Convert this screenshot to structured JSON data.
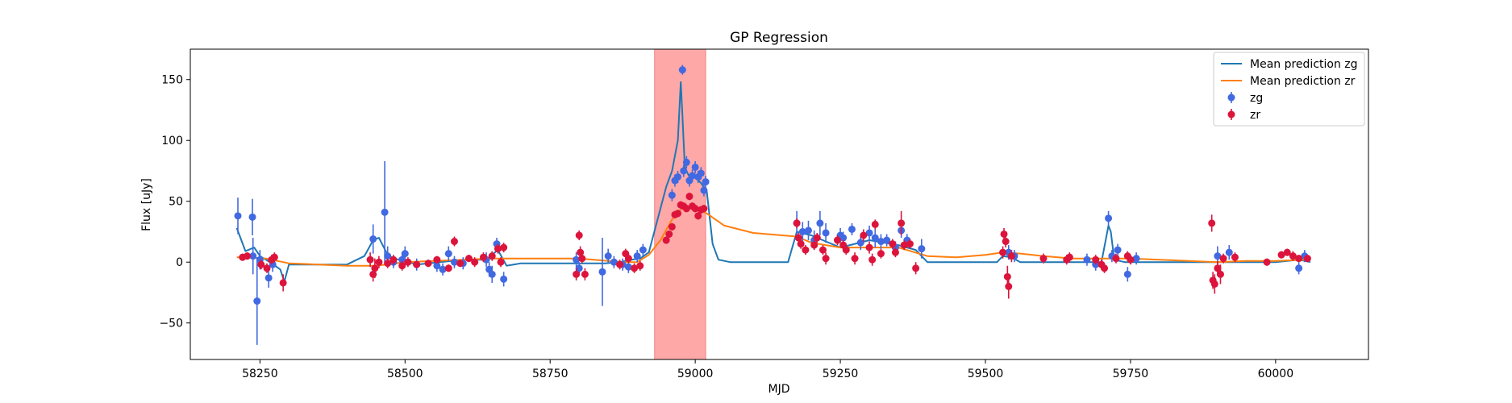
{
  "chart_data": {
    "type": "scatter",
    "title": "GP Regression",
    "xlabel": "MJD",
    "ylabel": "Flux [uJy]",
    "xlim": [
      58130,
      60160
    ],
    "ylim": [
      -80,
      175
    ],
    "xticks": [
      58250,
      58500,
      58750,
      59000,
      59250,
      59500,
      59750,
      60000
    ],
    "yticks": [
      -50,
      0,
      50,
      100,
      150
    ],
    "grid": false,
    "legend_position": "top-right",
    "highlight_band": {
      "x_start": 58930,
      "x_end": 59018,
      "color": "#ff9999"
    },
    "colors": {
      "zg_line": "#1f77b4",
      "zr_line": "#ff7f0e",
      "zg_points": "#4169e1",
      "zr_points": "#dc143c"
    },
    "legend": [
      {
        "label": "Mean prediction zg",
        "kind": "line",
        "color": "#1f77b4"
      },
      {
        "label": "Mean prediction zr",
        "kind": "line",
        "color": "#ff7f0e"
      },
      {
        "label": "zg",
        "kind": "errorbar",
        "color": "#4169e1"
      },
      {
        "label": "zr",
        "kind": "errorbar",
        "color": "#dc143c"
      }
    ],
    "series": [
      {
        "name": "Mean prediction zg",
        "kind": "line",
        "color": "#1f77b4",
        "x": [
          58210,
          58225,
          58240,
          58250,
          58260,
          58270,
          58285,
          58292,
          58300,
          58320,
          58400,
          58430,
          58445,
          58455,
          58470,
          58480,
          58500,
          58520,
          58560,
          58600,
          58640,
          58660,
          58675,
          58700,
          58760,
          58800,
          58830,
          58845,
          58870,
          58890,
          58905,
          58920,
          58935,
          58950,
          58960,
          58970,
          58975,
          58978,
          58982,
          58990,
          59000,
          59010,
          59020,
          59030,
          59040,
          59060,
          59100,
          59160,
          59175,
          59200,
          59250,
          59300,
          59350,
          59380,
          59400,
          59450,
          59520,
          59530,
          59545,
          59560,
          59600,
          59650,
          59700,
          59712,
          59716,
          59722,
          59740,
          59770,
          59800,
          59900,
          59950,
          60000,
          60040,
          60060
        ],
        "y": [
          28,
          9,
          12,
          5,
          2,
          -1,
          -6,
          -16,
          -2,
          -2,
          -2,
          5,
          18,
          20,
          6,
          3,
          1,
          -2,
          0,
          2,
          2,
          10,
          -3,
          -1,
          -1,
          -1,
          -1,
          -1,
          0,
          2,
          3,
          8,
          35,
          62,
          75,
          100,
          148,
          120,
          78,
          70,
          70,
          65,
          58,
          15,
          2,
          0,
          0,
          0,
          25,
          22,
          12,
          18,
          14,
          10,
          0,
          0,
          0,
          5,
          4,
          0,
          0,
          0,
          0,
          30,
          25,
          2,
          0,
          0,
          0,
          0,
          0,
          0,
          2,
          0
        ]
      },
      {
        "name": "Mean prediction zr",
        "kind": "line",
        "color": "#ff7f0e",
        "x": [
          58210,
          58230,
          58260,
          58280,
          58300,
          58350,
          58400,
          58450,
          58500,
          58550,
          58600,
          58650,
          58700,
          58750,
          58800,
          58850,
          58880,
          58900,
          58920,
          58940,
          58960,
          58980,
          59000,
          59020,
          59050,
          59100,
          59150,
          59175,
          59200,
          59250,
          59300,
          59350,
          59400,
          59450,
          59500,
          59530,
          59560,
          59600,
          59650,
          59700,
          59750,
          59800,
          59850,
          59900,
          59950,
          60000,
          60050
        ],
        "y": [
          4,
          4,
          3,
          1,
          -1,
          -2,
          -3,
          -3,
          0,
          1,
          2,
          3,
          3,
          3,
          3,
          1,
          0,
          0,
          6,
          18,
          35,
          46,
          44,
          40,
          30,
          24,
          22,
          21,
          16,
          12,
          12,
          12,
          5,
          4,
          6,
          8,
          7,
          5,
          3,
          3,
          3,
          2,
          1,
          0,
          1,
          1,
          2
        ]
      },
      {
        "name": "zg",
        "kind": "errorbar",
        "color": "#4169e1",
        "points": [
          [
            58212,
            38,
            15
          ],
          [
            58237,
            37,
            15
          ],
          [
            58245,
            -32,
            36
          ],
          [
            58238,
            5,
            15
          ],
          [
            58250,
            2,
            8
          ],
          [
            58265,
            -13,
            8
          ],
          [
            58272,
            -2,
            6
          ],
          [
            58445,
            19,
            12
          ],
          [
            58465,
            41,
            42
          ],
          [
            58470,
            5,
            8
          ],
          [
            58480,
            0,
            5
          ],
          [
            58495,
            2,
            6
          ],
          [
            58500,
            7,
            6
          ],
          [
            58520,
            -2,
            5
          ],
          [
            58555,
            -3,
            5
          ],
          [
            58565,
            -6,
            5
          ],
          [
            58575,
            7,
            6
          ],
          [
            58585,
            0,
            5
          ],
          [
            58600,
            -1,
            5
          ],
          [
            58640,
            2,
            6
          ],
          [
            58645,
            -6,
            6
          ],
          [
            58650,
            -10,
            7
          ],
          [
            58658,
            15,
            5
          ],
          [
            58670,
            -14,
            6
          ],
          [
            58795,
            2,
            6
          ],
          [
            58800,
            -5,
            5
          ],
          [
            58840,
            -8,
            28
          ],
          [
            58850,
            5,
            6
          ],
          [
            58860,
            0,
            5
          ],
          [
            58875,
            -2,
            5
          ],
          [
            58885,
            -4,
            5
          ],
          [
            58900,
            5,
            5
          ],
          [
            58910,
            10,
            5
          ],
          [
            58960,
            55,
            5
          ],
          [
            58965,
            67,
            5
          ],
          [
            58970,
            70,
            5
          ],
          [
            58978,
            158,
            4
          ],
          [
            58980,
            75,
            5
          ],
          [
            58985,
            82,
            5
          ],
          [
            58990,
            67,
            5
          ],
          [
            58995,
            71,
            5
          ],
          [
            59000,
            78,
            5
          ],
          [
            59005,
            70,
            5
          ],
          [
            59010,
            73,
            5
          ],
          [
            59015,
            59,
            5
          ],
          [
            59018,
            66,
            5
          ],
          [
            59175,
            32,
            10
          ],
          [
            59185,
            25,
            8
          ],
          [
            59195,
            26,
            8
          ],
          [
            59205,
            18,
            8
          ],
          [
            59215,
            32,
            10
          ],
          [
            59225,
            24,
            8
          ],
          [
            59250,
            22,
            6
          ],
          [
            59255,
            20,
            5
          ],
          [
            59270,
            27,
            5
          ],
          [
            59285,
            16,
            6
          ],
          [
            59300,
            24,
            6
          ],
          [
            59310,
            20,
            8
          ],
          [
            59320,
            17,
            6
          ],
          [
            59330,
            18,
            5
          ],
          [
            59345,
            12,
            5
          ],
          [
            59355,
            26,
            6
          ],
          [
            59365,
            18,
            5
          ],
          [
            59390,
            11,
            8
          ],
          [
            59540,
            8,
            6
          ],
          [
            59550,
            5,
            5
          ],
          [
            59675,
            2,
            5
          ],
          [
            59690,
            -2,
            5
          ],
          [
            59712,
            36,
            6
          ],
          [
            59718,
            5,
            5
          ],
          [
            59728,
            10,
            5
          ],
          [
            59745,
            -10,
            6
          ],
          [
            59760,
            3,
            5
          ],
          [
            59900,
            5,
            8
          ],
          [
            59920,
            8,
            6
          ],
          [
            60040,
            -5,
            5
          ],
          [
            60050,
            5,
            5
          ]
        ]
      },
      {
        "name": "zr",
        "kind": "errorbar",
        "color": "#dc143c",
        "points": [
          [
            58220,
            4,
            3
          ],
          [
            58228,
            5,
            3
          ],
          [
            58252,
            -2,
            4
          ],
          [
            58262,
            -5,
            4
          ],
          [
            58270,
            2,
            4
          ],
          [
            58275,
            4,
            4
          ],
          [
            58290,
            -17,
            7
          ],
          [
            58440,
            2,
            6
          ],
          [
            58445,
            -10,
            6
          ],
          [
            58448,
            -5,
            8
          ],
          [
            58455,
            0,
            5
          ],
          [
            58470,
            -1,
            4
          ],
          [
            58480,
            2,
            4
          ],
          [
            58495,
            -3,
            4
          ],
          [
            58505,
            0,
            4
          ],
          [
            58520,
            -2,
            3
          ],
          [
            58540,
            -1,
            3
          ],
          [
            58555,
            2,
            3
          ],
          [
            58575,
            -5,
            3
          ],
          [
            58585,
            17,
            4
          ],
          [
            58595,
            -1,
            3
          ],
          [
            58610,
            3,
            3
          ],
          [
            58620,
            0,
            4
          ],
          [
            58635,
            4,
            4
          ],
          [
            58650,
            5,
            4
          ],
          [
            58660,
            11,
            4
          ],
          [
            58665,
            0,
            4
          ],
          [
            58670,
            12,
            4
          ],
          [
            58795,
            -10,
            5
          ],
          [
            58800,
            22,
            4
          ],
          [
            58802,
            8,
            5
          ],
          [
            58805,
            3,
            4
          ],
          [
            58810,
            -10,
            5
          ],
          [
            58870,
            -2,
            4
          ],
          [
            58880,
            7,
            4
          ],
          [
            58885,
            3,
            4
          ],
          [
            58895,
            -5,
            4
          ],
          [
            58905,
            -3,
            4
          ],
          [
            58950,
            18,
            3
          ],
          [
            58955,
            23,
            3
          ],
          [
            58960,
            29,
            3
          ],
          [
            58965,
            39,
            3
          ],
          [
            58970,
            40,
            3
          ],
          [
            58975,
            47,
            3
          ],
          [
            58980,
            46,
            3
          ],
          [
            58985,
            44,
            3
          ],
          [
            58990,
            54,
            3
          ],
          [
            58995,
            46,
            3
          ],
          [
            59000,
            44,
            3
          ],
          [
            59005,
            38,
            3
          ],
          [
            59010,
            43,
            3
          ],
          [
            59015,
            44,
            3
          ],
          [
            59175,
            32,
            4
          ],
          [
            59178,
            20,
            4
          ],
          [
            59182,
            15,
            4
          ],
          [
            59190,
            10,
            4
          ],
          [
            59205,
            14,
            4
          ],
          [
            59210,
            20,
            4
          ],
          [
            59220,
            10,
            4
          ],
          [
            59225,
            3,
            5
          ],
          [
            59245,
            18,
            4
          ],
          [
            59255,
            14,
            4
          ],
          [
            59260,
            10,
            4
          ],
          [
            59275,
            3,
            5
          ],
          [
            59290,
            22,
            5
          ],
          [
            59300,
            12,
            5
          ],
          [
            59305,
            2,
            5
          ],
          [
            59310,
            31,
            4
          ],
          [
            59320,
            7,
            4
          ],
          [
            59340,
            15,
            4
          ],
          [
            59345,
            8,
            4
          ],
          [
            59355,
            32,
            10
          ],
          [
            59360,
            14,
            4
          ],
          [
            59370,
            15,
            4
          ],
          [
            59380,
            -5,
            5
          ],
          [
            59530,
            8,
            5
          ],
          [
            59532,
            23,
            5
          ],
          [
            59535,
            17,
            5
          ],
          [
            59538,
            -12,
            9
          ],
          [
            59540,
            -20,
            10
          ],
          [
            59545,
            5,
            5
          ],
          [
            59600,
            3,
            4
          ],
          [
            59640,
            2,
            4
          ],
          [
            59645,
            4,
            4
          ],
          [
            59690,
            2,
            4
          ],
          [
            59700,
            -2,
            4
          ],
          [
            59705,
            -5,
            4
          ],
          [
            59725,
            3,
            4
          ],
          [
            59745,
            5,
            4
          ],
          [
            59750,
            2,
            4
          ],
          [
            59890,
            32,
            7
          ],
          [
            59892,
            -15,
            7
          ],
          [
            59895,
            -18,
            8
          ],
          [
            59900,
            -5,
            6
          ],
          [
            59905,
            -10,
            8
          ],
          [
            59910,
            3,
            4
          ],
          [
            59930,
            4,
            4
          ],
          [
            59985,
            0,
            3
          ],
          [
            60010,
            6,
            3
          ],
          [
            60020,
            8,
            3
          ],
          [
            60030,
            5,
            4
          ],
          [
            60040,
            3,
            3
          ],
          [
            60055,
            3,
            3
          ]
        ]
      }
    ]
  }
}
